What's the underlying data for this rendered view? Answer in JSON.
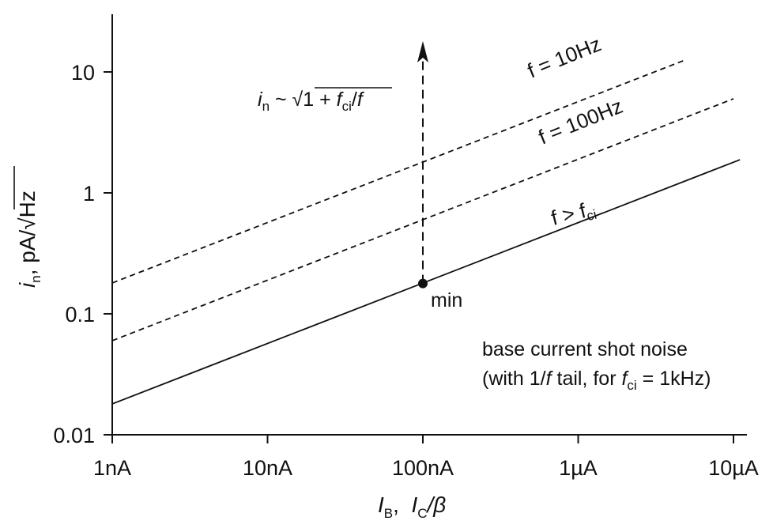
{
  "chart_data": {
    "type": "line",
    "x_scale": "log",
    "y_scale": "log",
    "xlim": [
      1e-09,
      1.1e-05
    ],
    "ylim": [
      0.01,
      30
    ],
    "x_ticks": [
      {
        "value": 1e-09,
        "label": "1nA"
      },
      {
        "value": 1e-08,
        "label": "10nA"
      },
      {
        "value": 1e-07,
        "label": "100nA"
      },
      {
        "value": 1e-06,
        "label": "1µA"
      },
      {
        "value": 1e-05,
        "label": "10µA"
      }
    ],
    "y_ticks": [
      {
        "value": 0.01,
        "label": "0.01"
      },
      {
        "value": 0.1,
        "label": "0.1"
      },
      {
        "value": 1,
        "label": "1"
      },
      {
        "value": 10,
        "label": "10"
      }
    ],
    "xlabel": {
      "main1": "I",
      "sub1": "B",
      "sep": ",  ",
      "main2": "I",
      "sub2": "C",
      "tail": "/β"
    },
    "ylabel": {
      "main": "i",
      "sub": "n",
      "units": ", pA/√Hz"
    },
    "series": [
      {
        "name": "f = 10Hz",
        "style": "dashed",
        "x": [
          1e-09,
          5e-06
        ],
        "y": [
          0.18,
          12.7
        ]
      },
      {
        "name": "f = 100Hz",
        "style": "dashed",
        "x": [
          1e-09,
          1e-05
        ],
        "y": [
          0.06,
          6.0
        ]
      },
      {
        "name": "f > fci",
        "style": "solid",
        "x": [
          1e-09,
          1.1e-05
        ],
        "y": [
          0.018,
          1.88
        ]
      }
    ],
    "curve_labels": [
      {
        "text": "f = 10Hz"
      },
      {
        "text": "f = 100Hz"
      },
      {
        "main": "f > f",
        "sub": "ci"
      }
    ],
    "point": {
      "x": 1e-07,
      "y": 0.178,
      "label": "min"
    },
    "arrow": {
      "x": 1e-07,
      "y_from": 0.178,
      "y_to": 18
    },
    "formula": {
      "i": "i",
      "n": "n",
      "mid": " ~ √1 + ",
      "f": "f",
      "ci": "ci",
      "slash": "/",
      "f2": "f"
    },
    "note": {
      "line1": "base current shot noise",
      "line2_a": "(with 1/",
      "line2_f": "f",
      "line2_b": " tail, for ",
      "line2_f2": "f",
      "line2_sub": "ci",
      "line2_c": " = 1kHz)"
    },
    "grid": false,
    "legend": "none"
  }
}
